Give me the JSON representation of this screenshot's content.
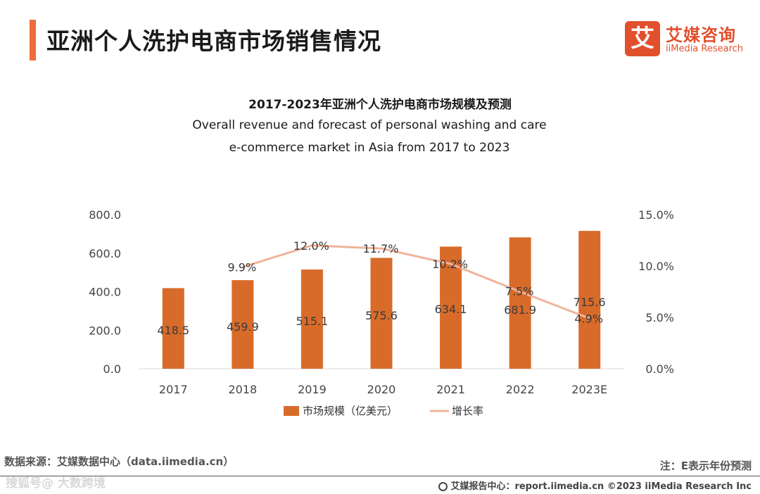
{
  "page_title": "亚洲个人洗护电商市场销售情况",
  "logo": {
    "mark": "艾",
    "name_cn": "艾媒咨询",
    "name_en": "iiMedia Research"
  },
  "chart_data": {
    "type": "bar",
    "title": "2017-2023年亚洲个人洗护电商市场规模及预测",
    "subtitle_line1": "Overall revenue and forecast of personal washing and care",
    "subtitle_line2": "e-commerce market in Asia from 2017 to 2023",
    "categories": [
      "2017",
      "2018",
      "2019",
      "2020",
      "2021",
      "2022",
      "2023E"
    ],
    "series": [
      {
        "name": "市场规模（亿美元）",
        "type": "bar",
        "axis": "left",
        "values": [
          418.5,
          459.9,
          515.1,
          575.6,
          634.1,
          681.9,
          715.6
        ],
        "labels": [
          "418.5",
          "459.9",
          "515.1",
          "575.6",
          "634.1",
          "681.9",
          "715.6"
        ]
      },
      {
        "name": "增长率",
        "type": "line",
        "axis": "right",
        "values": [
          null,
          9.9,
          12.0,
          11.7,
          10.2,
          7.5,
          4.9
        ],
        "labels": [
          "",
          "9.9%",
          "12.0%",
          "11.7%",
          "10.2%",
          "7.5%",
          "4.9%"
        ]
      }
    ],
    "ylim": [
      0,
      800
    ],
    "y_ticks": [
      "800.0",
      "600.0",
      "400.0",
      "200.0",
      "0.0"
    ],
    "y_tick_values": [
      800,
      600,
      400,
      200,
      0
    ],
    "y2lim": [
      0,
      15
    ],
    "y2_ticks": [
      "15.0%",
      "10.0%",
      "5.0%",
      "0.0%"
    ],
    "y2_tick_values": [
      15,
      10,
      5,
      0
    ],
    "colors": {
      "bar": "#d86b2a",
      "line": "#f0b49a",
      "axis": "#d9d9d9",
      "text": "#444444"
    },
    "legend": "bottom-center",
    "grid": false
  },
  "source": "数据来源：艾媒数据中心（data.iimedia.cn）",
  "note": "注：E表示年份预测",
  "watermark": "搜狐号@ 大数跨境",
  "footer": "艾媒报告中心：report.iimedia.cn ©2023 iiMedia Research Inc"
}
